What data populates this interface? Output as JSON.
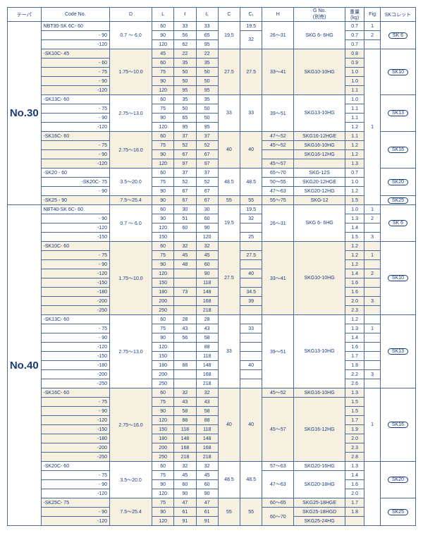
{
  "header": {
    "taper": "テーパ",
    "code": "Code No.",
    "D": "D",
    "L": "L",
    "l": "ℓ",
    "l1": "ℓ₁",
    "C": "C",
    "C1": "C₁",
    "H": "H",
    "G": "G No.\n(別売)",
    "wt": "重量\n(kg)",
    "fig": "Fig",
    "sk": "SKコレット"
  },
  "n30": {
    "label": "No.30",
    "g1": {
      "codes": [
        "NBT30-SK 6C-  60",
        "- 90",
        "-120"
      ],
      "D": "0.7 ～  6.0",
      "L": [
        "60",
        "90",
        "120"
      ],
      "l": [
        "33",
        "56",
        "62"
      ],
      "l1": [
        "33",
        "65",
        "95"
      ],
      "C": "19.5",
      "C1": [
        "19.5",
        "32"
      ],
      "H": "26～31",
      "G": "SKG 6- 6HG",
      "wt": [
        "0.7",
        "0.7",
        "0.7"
      ],
      "fig": [
        "1",
        "2"
      ],
      "sk": "SK 6"
    },
    "g2": {
      "codes": [
        "-SK10C-  45",
        "- 60",
        "- 75",
        "- 90",
        "-120"
      ],
      "D": "1.75～10.0",
      "L": [
        "45",
        "60",
        "75",
        "90",
        "120"
      ],
      "l": [
        "22",
        "35",
        "50",
        "50",
        "95"
      ],
      "l1": [
        "22",
        "35",
        "50",
        "50",
        "95"
      ],
      "C": "27.5",
      "C1": "27.5",
      "H": "33～41",
      "G": "SKG10-10HG",
      "wt": [
        "0.8",
        "0.9",
        "1.0",
        "1.0",
        "1.1"
      ],
      "sk": "SK10"
    },
    "g3": {
      "codes": [
        "-SK13C-  60",
        "- 75",
        "- 90",
        "-120"
      ],
      "D": "2.75～13.0",
      "L": [
        "60",
        "75",
        "90",
        "120"
      ],
      "l": [
        "35",
        "50",
        "65",
        "95"
      ],
      "l1": [
        "35",
        "50",
        "50",
        "95"
      ],
      "C": "33",
      "C1": "33",
      "H": "39～51",
      "G": "SKG13-10HG",
      "wt": [
        "1.0",
        "1.1",
        "1.1",
        "1.2"
      ],
      "sk": "SK13",
      "fig": "1"
    },
    "g4": {
      "codes": [
        "-SK16C-  60",
        "- 75",
        "- 90",
        "-120"
      ],
      "D": "2.75～16.0",
      "L": [
        "60",
        "75",
        "90",
        "120"
      ],
      "l": [
        "37",
        "52",
        "67",
        "97"
      ],
      "l1": [
        "37",
        "52",
        "67",
        "97"
      ],
      "C": "40",
      "C1": "40",
      "H": [
        "47～52",
        "45～52",
        "",
        "45～57"
      ],
      "G": [
        "SKG16-12HGE",
        "SKG16-10HG",
        "SKG16-12HG",
        ""
      ],
      "wt": [
        "1.1",
        "1.2",
        "1.2",
        "1.3"
      ],
      "sk": "SK16"
    },
    "g5": {
      "codes": [
        "-SK20  -  60",
        "-SK20C-  75",
        "- 90"
      ],
      "D": "3.5～20.0",
      "L": [
        "60",
        "75",
        "90"
      ],
      "l": [
        "37",
        "52",
        "67"
      ],
      "l1": [
        "37",
        "52",
        "67"
      ],
      "C": "48.5",
      "C1": "48.5",
      "H": [
        "65～70",
        "50～55",
        "47～63"
      ],
      "G": [
        "SKG-12S",
        "SKG20-12HGE",
        "SKG20-12HG"
      ],
      "wt": [
        "0.7",
        "1.0",
        "1.2"
      ],
      "sk": "SK20"
    },
    "g6": {
      "codes": [
        "-SK25  -  90"
      ],
      "D": "7.5～25.4",
      "L": [
        "90"
      ],
      "l": [
        "67"
      ],
      "l1": [
        "67"
      ],
      "C": "55",
      "C1": "55",
      "H": "55～75",
      "G": "SKG-12",
      "wt": [
        "1.5"
      ],
      "sk": "SK25"
    }
  },
  "n40": {
    "label": "No.40",
    "g1": {
      "codes": [
        "NBT40-SK 6C-  60",
        "- 90",
        "-120",
        "-150"
      ],
      "D": "0.7 ～  6.0",
      "L": [
        "60",
        "90",
        "120",
        "150"
      ],
      "l": [
        "30",
        "51",
        "60",
        ""
      ],
      "l1": [
        "30",
        "60",
        "90",
        "120"
      ],
      "C": "19.5",
      "C1": [
        "19.5",
        "32",
        "",
        "25"
      ],
      "H": "26～31",
      "G": "SKG 6- 6HG",
      "wt": [
        "1.0",
        "1.3",
        "1.4",
        "1.5"
      ],
      "fig": [
        "1",
        "2",
        "",
        "3"
      ],
      "sk": "SK 6"
    },
    "g2": {
      "codes": [
        "-SK10C-  60",
        "- 75",
        "- 90",
        "-120",
        "-150",
        "-180",
        "-200",
        "-250"
      ],
      "D": "1.75～10.0",
      "L": [
        "60",
        "75",
        "90",
        "120",
        "150",
        "180",
        "200",
        "250"
      ],
      "l": [
        "32",
        "45",
        "48",
        "",
        "",
        "73",
        "",
        ""
      ],
      "l1": [
        "32",
        "45",
        "60",
        "90",
        "118",
        "148",
        "168",
        "218"
      ],
      "C": "27.5",
      "C1": [
        "",
        "27.5",
        "",
        "40",
        "",
        "34.5",
        "39",
        ""
      ],
      "H": "33～41",
      "G": "SKG10-10HG",
      "wt": [
        "1.2",
        "1.2",
        "1.2",
        "1.4",
        "1.6",
        "1.6",
        "2.0",
        "2.3"
      ],
      "fig": [
        "",
        "1",
        "",
        "2",
        "",
        "",
        "3",
        ""
      ],
      "sk": "SK10"
    },
    "g3": {
      "codes": [
        "-SK13C-  60",
        "- 75",
        "- 90",
        "-120",
        "-150",
        "-180",
        "-200",
        "-250"
      ],
      "D": "2.75～13.0",
      "L": [
        "60",
        "75",
        "90",
        "120",
        "150",
        "180",
        "200",
        "250"
      ],
      "l": [
        "28",
        "43",
        "56",
        "",
        "",
        "88",
        "",
        ""
      ],
      "l1": [
        "28",
        "43",
        "58",
        "88",
        "118",
        "148",
        "168",
        "218"
      ],
      "C": "33",
      "C1": [
        "",
        "33",
        "",
        "",
        "",
        "40",
        "",
        ""
      ],
      "H": "39～51",
      "G": "SKG13-10HG",
      "wt": [
        "1.2",
        "1.3",
        "1.4",
        "1.6",
        "1.7",
        "1.8",
        "2.2",
        "2.6"
      ],
      "fig": [
        "",
        "1",
        "",
        "",
        "",
        "",
        "3",
        ""
      ],
      "sk": "SK13"
    },
    "g4": {
      "codes": [
        "-SK16C-  60",
        "- 75",
        "- 90",
        "-120",
        "-150",
        "-180",
        "-200",
        "-250"
      ],
      "D": "2.75～16.0",
      "L": [
        "60",
        "75",
        "90",
        "120",
        "150",
        "180",
        "200",
        "250"
      ],
      "l": [
        "32",
        "43",
        "58",
        "88",
        "118",
        "148",
        "168",
        "218"
      ],
      "l1": [
        "32",
        "43",
        "58",
        "88",
        "118",
        "148",
        "168",
        "218"
      ],
      "C": "40",
      "C1": "40",
      "Htop": "45～52",
      "Gtop": "SKG16-10HG",
      "H": "45～57",
      "G": "SKG16-12HG",
      "wt": [
        "1.3",
        "1.5",
        "1.5",
        "1.7",
        "1.9",
        "2.0",
        "2.3",
        "2.8"
      ],
      "fig": "1",
      "sk": "SK16"
    },
    "g5": {
      "codes": [
        "-SK20C-  60",
        "- 75",
        "- 90",
        "-120"
      ],
      "D": "3.5～20.0",
      "L": [
        "60",
        "75",
        "90",
        "120"
      ],
      "l": [
        "32",
        "45",
        "60",
        "90"
      ],
      "l1": [
        "32",
        "45",
        "60",
        "90"
      ],
      "C": "48.5",
      "C1": "48.5",
      "H": [
        "57～63",
        "",
        "47～63",
        ""
      ],
      "G": [
        "SKG20-16HG",
        "",
        "SKG20-18HG",
        ""
      ],
      "wt": [
        "1.3",
        "1.4",
        "1.6",
        "2.0"
      ],
      "sk": "SK20"
    },
    "g6": {
      "codes": [
        "-SK25C-  75",
        "- 90",
        "-120"
      ],
      "D": "7.5～25.4",
      "L": [
        "75",
        "90",
        "120"
      ],
      "l": [
        "47",
        "61",
        "91"
      ],
      "l1": [
        "47",
        "61",
        "91"
      ],
      "C": "55",
      "C1": "55",
      "H": [
        "60～65",
        "",
        "60～70"
      ],
      "G": [
        "SKG25-18HGE",
        "SKG25-18HGD",
        "SKG25-24HG"
      ],
      "wt": [
        "1.7",
        "1.8",
        ""
      ],
      "sk": "SK25"
    }
  }
}
